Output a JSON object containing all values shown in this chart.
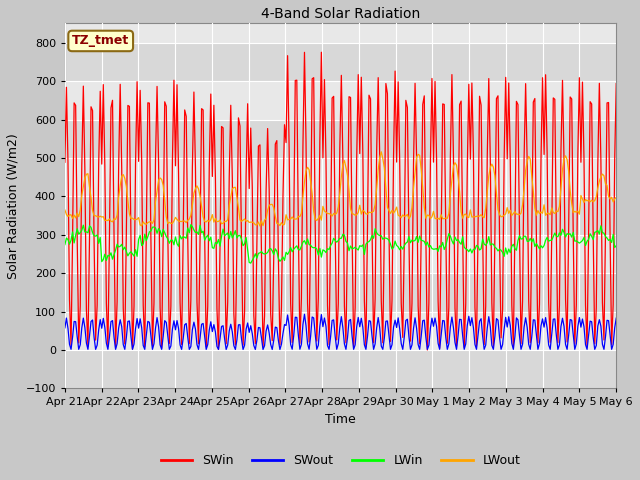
{
  "title": "4-Band Solar Radiation",
  "ylabel": "Solar Radiation (W/m2)",
  "xlabel": "Time",
  "ylim": [
    -100,
    850
  ],
  "yticks": [
    -100,
    0,
    100,
    200,
    300,
    400,
    500,
    600,
    700,
    800
  ],
  "legend_label": "TZ_tmet",
  "legend_entries": [
    "SWin",
    "SWout",
    "LWin",
    "LWout"
  ],
  "line_colors": [
    "red",
    "blue",
    "lime",
    "orange"
  ],
  "n_days": 15,
  "SWin_peaks": [
    685,
    690,
    690,
    678,
    635,
    585,
    760,
    710,
    720,
    700,
    700,
    705,
    700,
    710,
    700
  ],
  "SWout_peaks": [
    80,
    82,
    80,
    75,
    68,
    65,
    92,
    85,
    82,
    82,
    85,
    85,
    85,
    85,
    83
  ],
  "LWin_base": [
    298,
    255,
    295,
    300,
    290,
    245,
    265,
    275,
    285,
    280,
    275,
    270,
    275,
    295,
    295
  ],
  "LWout_night": [
    350,
    340,
    330,
    335,
    335,
    330,
    340,
    355,
    360,
    350,
    345,
    350,
    355,
    360,
    390
  ],
  "LWout_day_peak": [
    460,
    460,
    450,
    430,
    425,
    375,
    475,
    490,
    510,
    510,
    490,
    490,
    500,
    505,
    460
  ]
}
